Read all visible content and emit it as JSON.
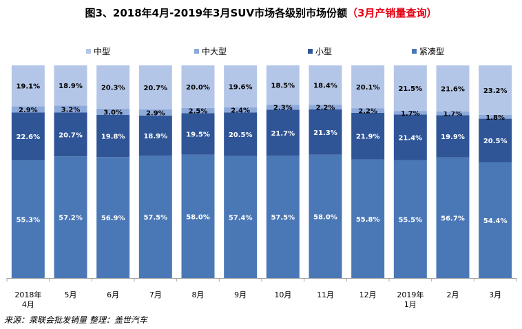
{
  "title_main": "图3、2018年4月-2019年3月SUV市场各级别市场份额",
  "title_highlight": "（3月产销量查询）",
  "source": "来源：乘联会批发销量    整理：盖世汽车",
  "colors": {
    "中型": "#b4c6e7",
    "中大型": "#8eaadb",
    "小型": "#2f5597",
    "紧凑型": "#4a78b6",
    "grid": "#d9d9d9",
    "axis": "#a6a6a6"
  },
  "chart_data": {
    "type": "bar",
    "stacked": true,
    "categories": [
      [
        "2018年",
        "4月"
      ],
      [
        "5月"
      ],
      [
        "6月"
      ],
      [
        "7月"
      ],
      [
        "8月"
      ],
      [
        "9月"
      ],
      [
        "10月"
      ],
      [
        "11月"
      ],
      [
        "12月"
      ],
      [
        "2019年",
        "1月"
      ],
      [
        "2月"
      ],
      [
        "3月"
      ]
    ],
    "legend_position": "top",
    "ylim": [
      0,
      100
    ],
    "series": [
      {
        "name": "紧凑型",
        "values": [
          55.3,
          57.2,
          56.9,
          57.5,
          58.0,
          57.4,
          57.5,
          58.0,
          55.8,
          55.5,
          56.7,
          54.4
        ],
        "labels": [
          "55.3%",
          "57.2%",
          "56.9%",
          "57.5%",
          "58.0%",
          "57.4%",
          "57.5%",
          "58.0%",
          "55.8%",
          "55.5%",
          "56.7%",
          "54.4%"
        ]
      },
      {
        "name": "小型",
        "values": [
          22.6,
          20.7,
          19.8,
          18.9,
          19.5,
          20.5,
          21.7,
          21.3,
          21.9,
          21.4,
          19.9,
          20.5
        ],
        "labels": [
          "22.6%",
          "20.7%",
          "19.8%",
          "18.9%",
          "19.5%",
          "20.5%",
          "21.7%",
          "21.3%",
          "21.9%",
          "21.4%",
          "19.9%",
          "20.5%"
        ]
      },
      {
        "name": "中大型",
        "values": [
          2.9,
          3.2,
          3.0,
          2.9,
          2.5,
          2.4,
          2.3,
          2.2,
          2.2,
          1.7,
          1.7,
          1.8
        ],
        "labels": [
          "2.9%",
          "3.2%",
          "3.0%",
          "2.9%",
          "2.5%",
          "2.4%",
          "2.3%",
          "2.2%",
          "2.2%",
          "1.7%",
          "1.7%",
          "1.8%"
        ]
      },
      {
        "name": "中型",
        "values": [
          19.1,
          18.9,
          20.3,
          20.7,
          20.0,
          19.6,
          18.5,
          18.4,
          20.1,
          21.5,
          21.6,
          23.2
        ],
        "labels": [
          "19.1%",
          "18.9%",
          "20.3%",
          "20.7%",
          "20.0%",
          "19.6%",
          "18.5%",
          "18.4%",
          "20.1%",
          "21.5%",
          "21.6%",
          "23.2%"
        ]
      }
    ],
    "legend_order": [
      "中型",
      "中大型",
      "小型",
      "紧凑型"
    ]
  }
}
